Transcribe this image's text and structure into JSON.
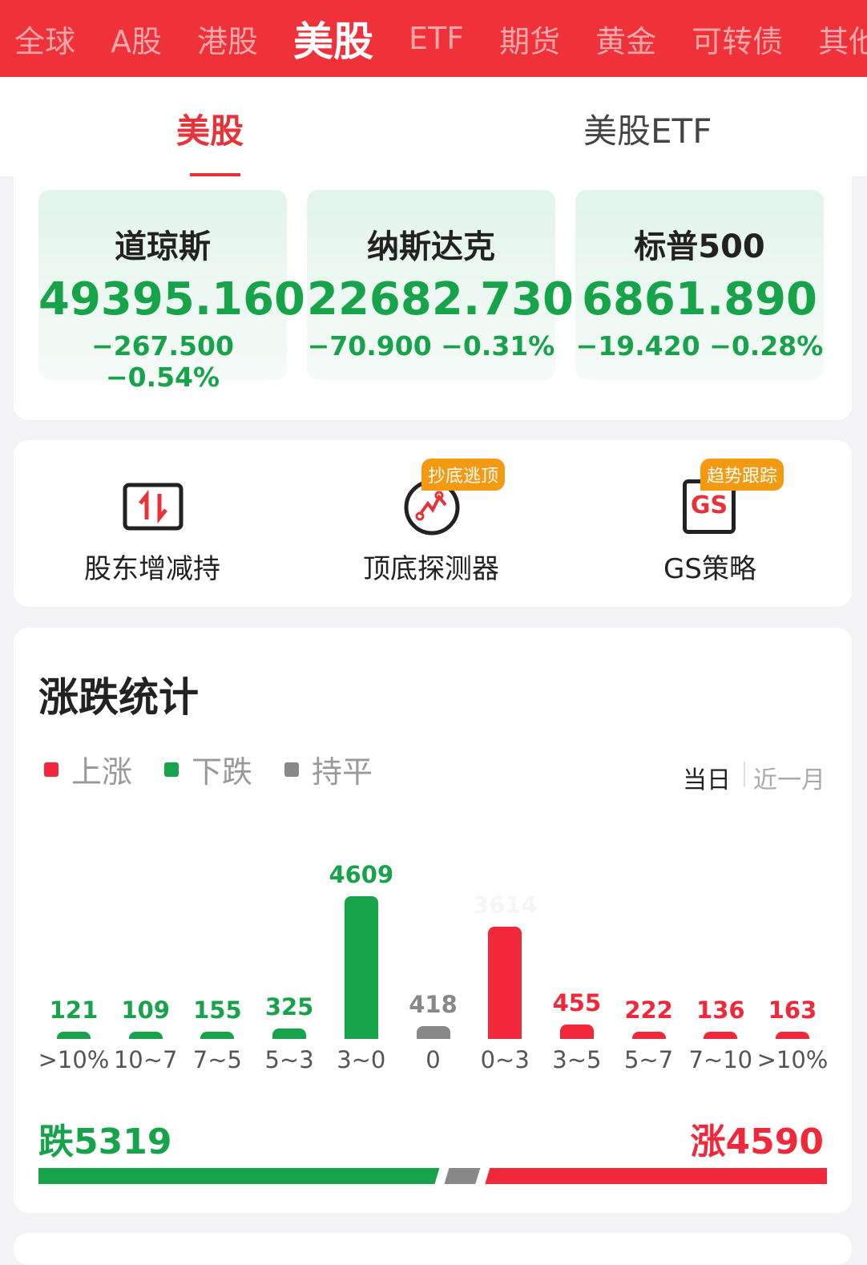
{
  "top_tabs": [
    "全球",
    "A股",
    "港股",
    "美股",
    "ETF",
    "期货",
    "黄金",
    "可转债",
    "其他"
  ],
  "top_active": "美股",
  "sub_tabs": [
    "美股",
    "美股ETF"
  ],
  "indices": [
    {
      "name": "道琼斯",
      "value": "49395.160",
      "change": "−267.500",
      "pct": "−0.54%"
    },
    {
      "name": "纳斯达克",
      "value": "22682.730",
      "change": "−70.900",
      "pct": "−0.31%"
    },
    {
      "name": "标普500",
      "value": "6861.890",
      "change": "−19.420",
      "pct": "−0.28%"
    }
  ],
  "tools": [
    {
      "label": "股东增减持",
      "icon": "arrows-up-down-icon"
    },
    {
      "label": "顶底探测器",
      "icon": "detector-icon",
      "badge": "抄底逃顶"
    },
    {
      "label": "GS策略",
      "icon": "gs-icon",
      "badge": "趋势跟踪",
      "icon_text": "GS"
    }
  ],
  "stats": {
    "title": "涨跌统计",
    "legend": [
      "上涨",
      "下跌",
      "持平"
    ],
    "period_tabs": [
      "当日",
      "近一月"
    ],
    "fall_label": "跌5319",
    "rise_label": "涨4590",
    "colors": {
      "up": "#f0283a",
      "down": "#17a34a",
      "flat": "#888888"
    }
  },
  "chart_data": {
    "type": "bar",
    "categories": [
      ">10%",
      "10~7",
      "7~5",
      "5~3",
      "3~0",
      "0",
      "0~3",
      "3~5",
      "5~7",
      "7~10",
      ">10%"
    ],
    "values": [
      121,
      109,
      155,
      325,
      4609,
      418,
      3614,
      455,
      222,
      136,
      163
    ],
    "groups": [
      "down",
      "down",
      "down",
      "down",
      "down",
      "flat",
      "up",
      "up",
      "up",
      "up",
      "up"
    ],
    "ratio": {
      "down": 5319,
      "flat": 418,
      "up": 4590
    }
  }
}
